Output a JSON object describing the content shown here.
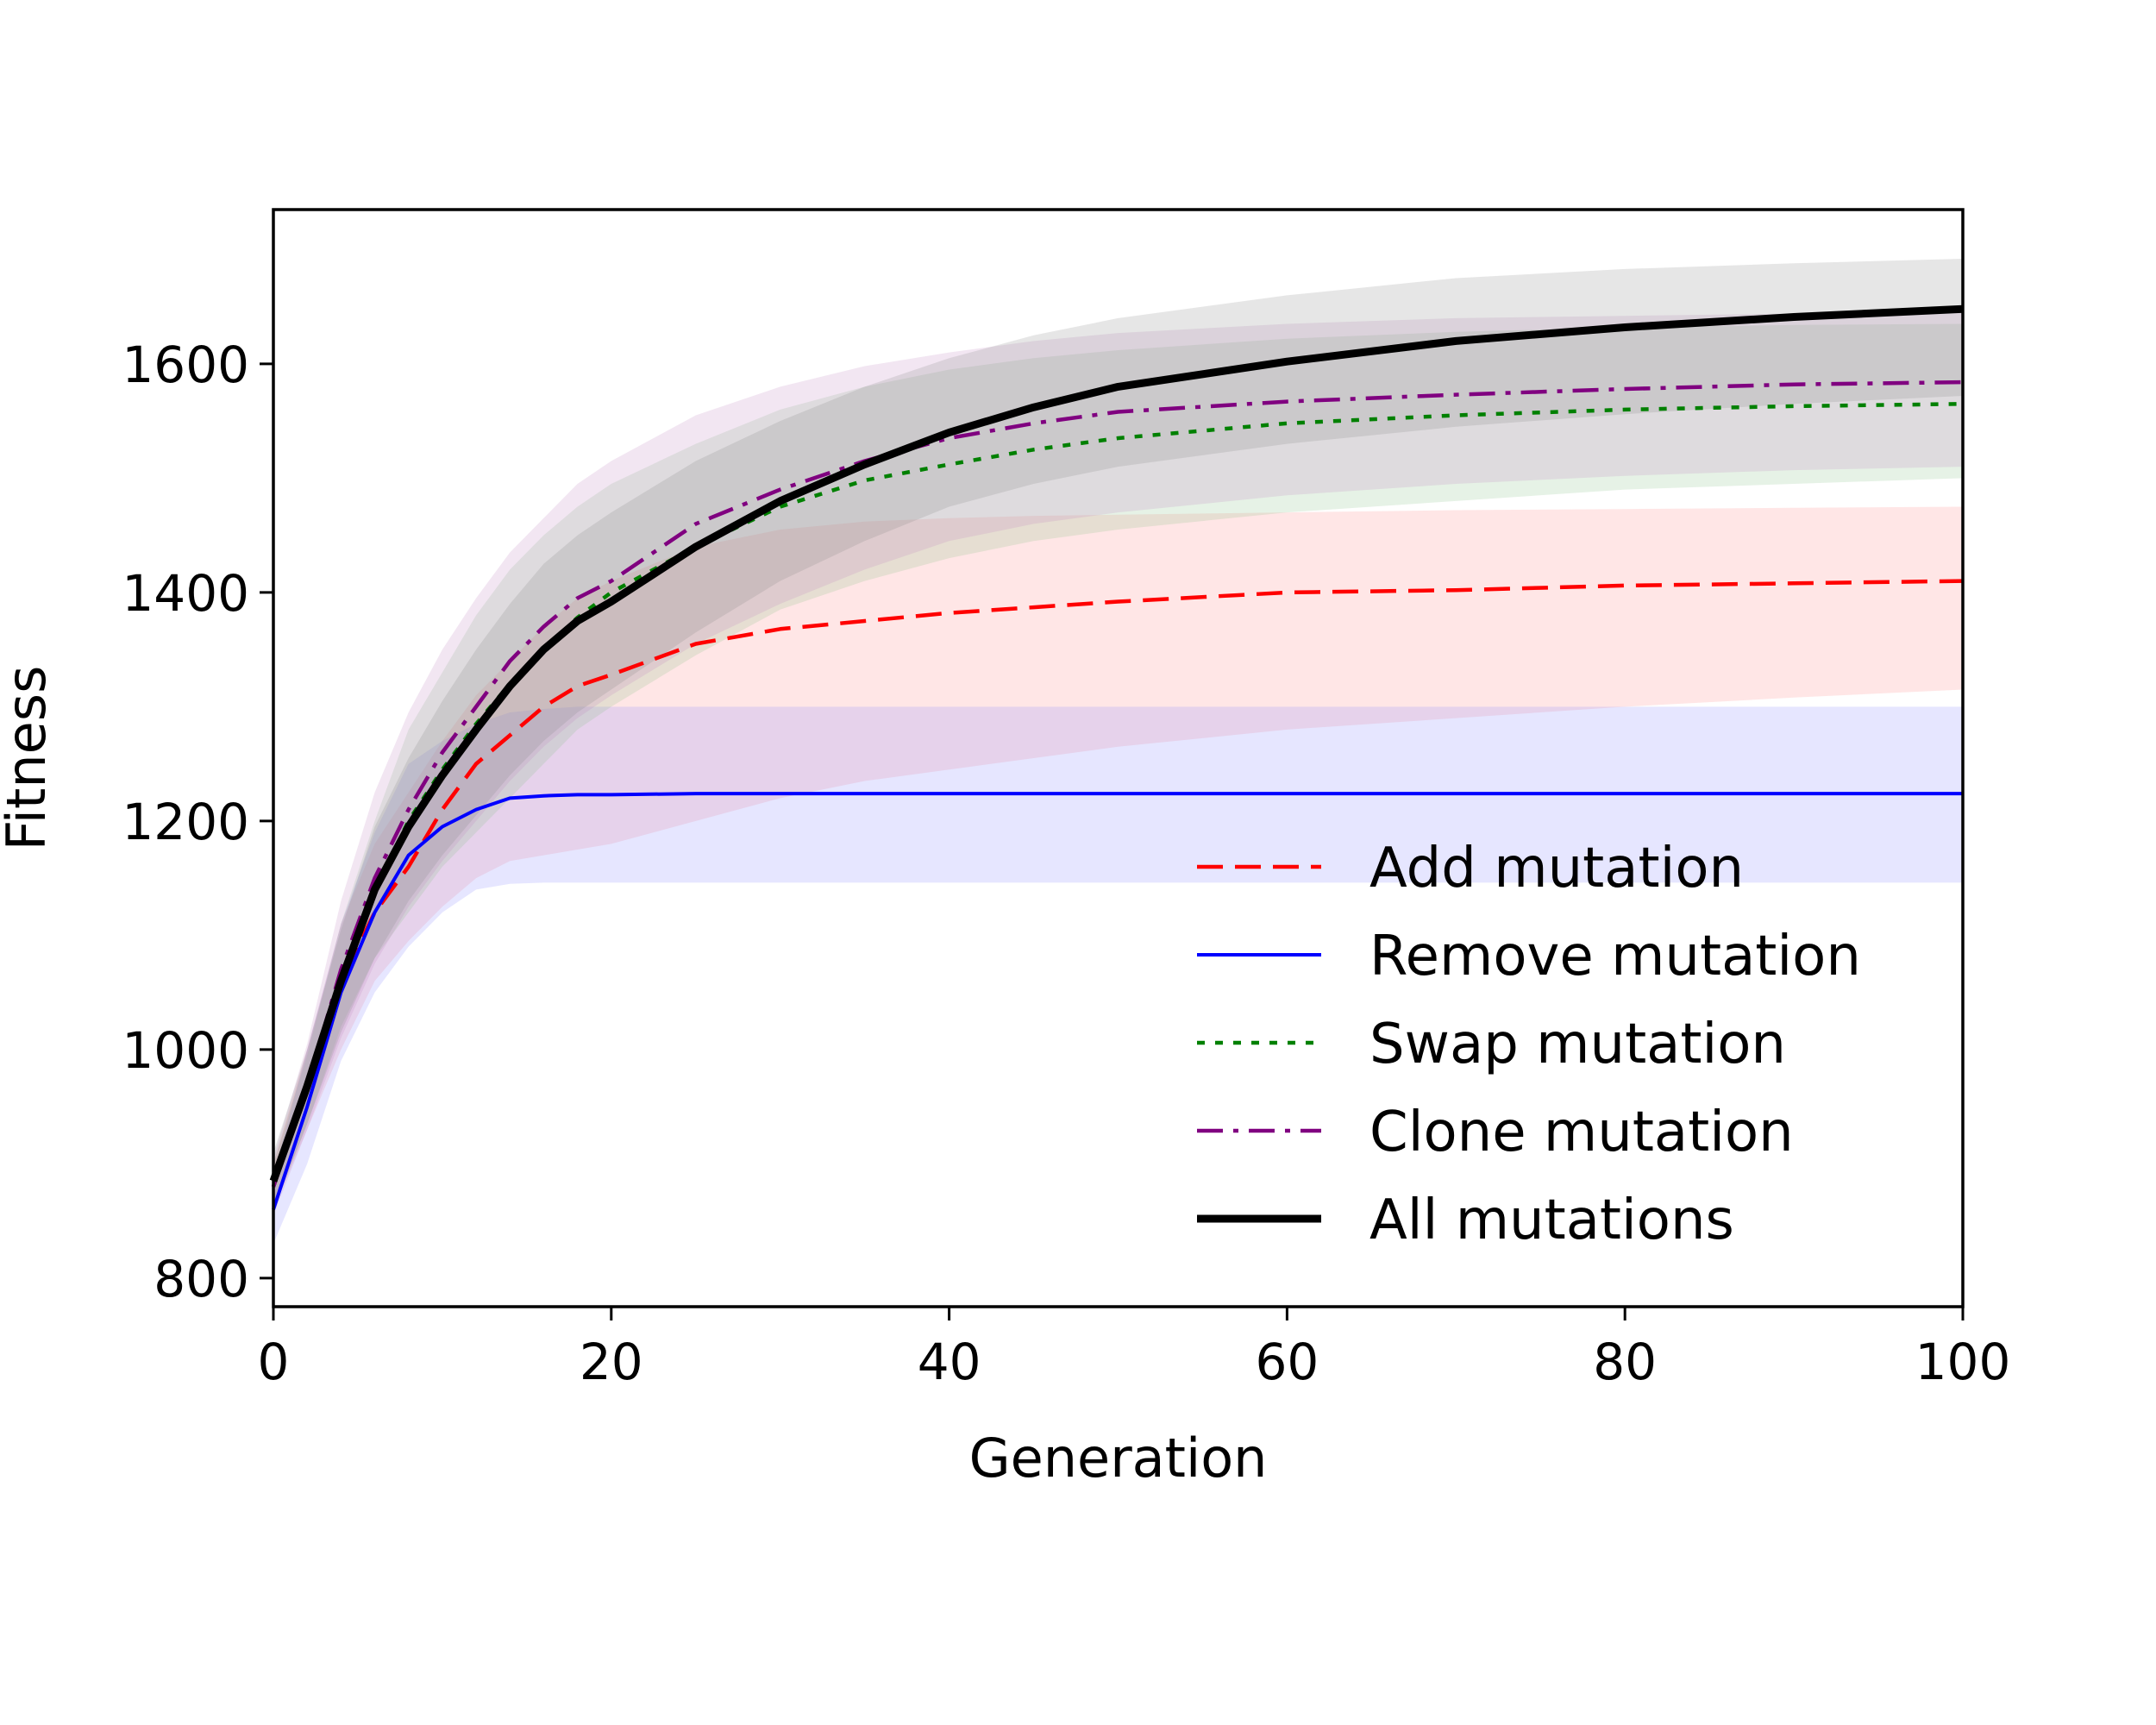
{
  "chart_data": {
    "type": "line",
    "title": "",
    "xlabel": "Generation",
    "ylabel": "Fitness",
    "xlim": [
      0,
      100
    ],
    "ylim": [
      775,
      1735
    ],
    "xticks": [
      "0",
      "20",
      "40",
      "60",
      "80",
      "100"
    ],
    "yticks": [
      "800",
      "1000",
      "1200",
      "1400",
      "1600"
    ],
    "grid": false,
    "legend_position": "lower-right",
    "x": [
      0,
      2,
      4,
      6,
      8,
      10,
      12,
      14,
      16,
      18,
      20,
      25,
      30,
      35,
      40,
      45,
      50,
      60,
      70,
      80,
      90,
      100
    ],
    "series": [
      {
        "name": "Add mutation",
        "color": "#ff0000",
        "band_color": "#ff8080",
        "style": "dashed",
        "values": [
          880,
          965,
          1060,
          1120,
          1160,
          1210,
          1250,
          1275,
          1300,
          1318,
          1328,
          1355,
          1368,
          1375,
          1382,
          1387,
          1392,
          1400,
          1402,
          1406,
          1408,
          1410
        ],
        "lower": [
          860,
          930,
          1000,
          1060,
          1095,
          1125,
          1150,
          1165,
          1170,
          1175,
          1180,
          1200,
          1220,
          1235,
          1245,
          1255,
          1265,
          1280,
          1290,
          1300,
          1308,
          1315
        ],
        "upper": [
          900,
          1000,
          1110,
          1180,
          1225,
          1270,
          1310,
          1340,
          1370,
          1395,
          1410,
          1440,
          1455,
          1462,
          1465,
          1467,
          1468,
          1470,
          1472,
          1473,
          1474,
          1475
        ]
      },
      {
        "name": "Remove mutation",
        "color": "#0000ff",
        "band_color": "#8080ff",
        "style": "solid",
        "values": [
          860,
          950,
          1050,
          1120,
          1170,
          1195,
          1210,
          1220,
          1222,
          1223,
          1223,
          1224,
          1224,
          1224,
          1224,
          1224,
          1224,
          1224,
          1224,
          1224,
          1224,
          1224
        ],
        "lower": [
          830,
          900,
          990,
          1050,
          1090,
          1120,
          1140,
          1145,
          1146,
          1146,
          1146,
          1146,
          1146,
          1146,
          1146,
          1146,
          1146,
          1146,
          1146,
          1146,
          1146,
          1146
        ],
        "upper": [
          890,
          1000,
          1110,
          1190,
          1250,
          1270,
          1285,
          1295,
          1298,
          1300,
          1300,
          1300,
          1300,
          1300,
          1300,
          1300,
          1300,
          1300,
          1300,
          1300,
          1300,
          1300
        ]
      },
      {
        "name": "Swap mutation",
        "color": "#008000",
        "band_color": "#80c080",
        "style": "dotted",
        "values": [
          880,
          965,
          1065,
          1140,
          1200,
          1245,
          1285,
          1320,
          1350,
          1378,
          1400,
          1440,
          1475,
          1498,
          1512,
          1525,
          1535,
          1548,
          1555,
          1560,
          1563,
          1565
        ],
        "lower": [
          860,
          935,
          1020,
          1080,
          1120,
          1160,
          1190,
          1220,
          1250,
          1280,
          1300,
          1345,
          1385,
          1410,
          1430,
          1445,
          1455,
          1470,
          1480,
          1490,
          1495,
          1500
        ],
        "upper": [
          900,
          995,
          1110,
          1200,
          1280,
          1330,
          1380,
          1420,
          1450,
          1475,
          1495,
          1530,
          1560,
          1580,
          1595,
          1605,
          1612,
          1622,
          1628,
          1632,
          1634,
          1635
        ]
      },
      {
        "name": "Clone mutation",
        "color": "#800080",
        "band_color": "#c080c0",
        "style": "dashdot",
        "values": [
          880,
          968,
          1070,
          1150,
          1210,
          1260,
          1300,
          1340,
          1370,
          1395,
          1410,
          1460,
          1490,
          1515,
          1535,
          1548,
          1558,
          1567,
          1573,
          1578,
          1582,
          1584
        ],
        "lower": [
          855,
          930,
          1010,
          1075,
          1125,
          1165,
          1200,
          1235,
          1265,
          1290,
          1310,
          1355,
          1390,
          1420,
          1445,
          1460,
          1470,
          1485,
          1495,
          1502,
          1507,
          1510
        ],
        "upper": [
          905,
          1005,
          1130,
          1225,
          1295,
          1350,
          1395,
          1435,
          1465,
          1495,
          1515,
          1555,
          1580,
          1598,
          1610,
          1620,
          1627,
          1635,
          1640,
          1642,
          1644,
          1645
        ]
      },
      {
        "name": "All mutations",
        "color": "#000000",
        "band_color": "#808080",
        "style": "solid-thick",
        "values": [
          885,
          968,
          1060,
          1140,
          1195,
          1240,
          1280,
          1318,
          1350,
          1375,
          1392,
          1440,
          1480,
          1512,
          1540,
          1562,
          1580,
          1602,
          1620,
          1632,
          1641,
          1648
        ],
        "lower": [
          860,
          935,
          1015,
          1080,
          1130,
          1170,
          1205,
          1240,
          1270,
          1295,
          1315,
          1365,
          1410,
          1445,
          1475,
          1495,
          1510,
          1530,
          1545,
          1556,
          1565,
          1572
        ],
        "upper": [
          910,
          1000,
          1105,
          1195,
          1255,
          1305,
          1350,
          1390,
          1425,
          1450,
          1470,
          1515,
          1550,
          1580,
          1605,
          1625,
          1640,
          1660,
          1675,
          1683,
          1688,
          1692
        ]
      }
    ]
  }
}
